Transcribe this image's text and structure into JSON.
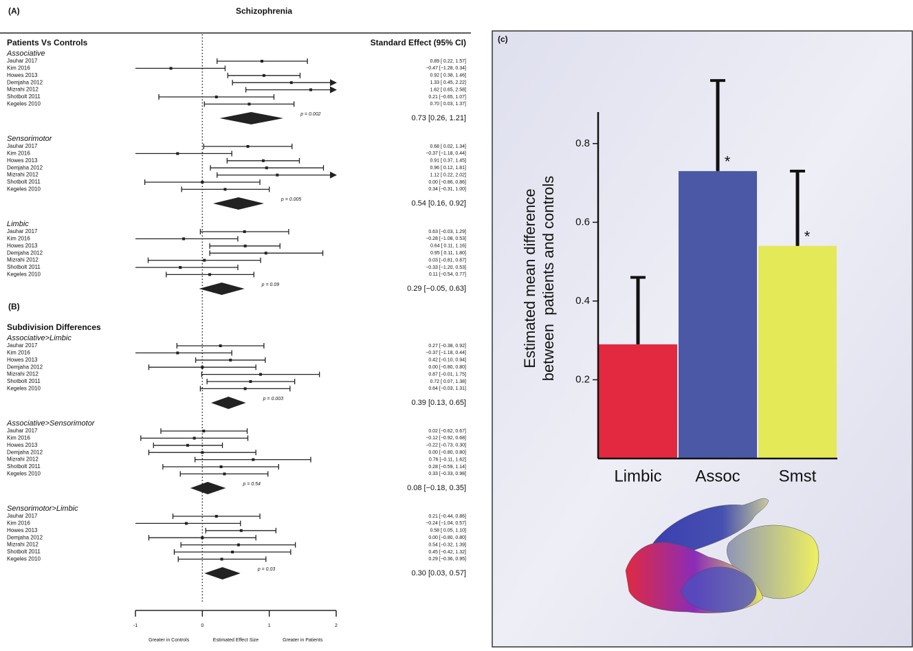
{
  "chart_data": [
    {
      "type": "forest",
      "title": "Schizophrenia",
      "column_header": "Standard Effect (95% CI)",
      "studies": [
        "Jauhar 2017",
        "Kim 2016",
        "Howes 2013",
        "Demjaha 2012",
        "Mizrahi 2012",
        "Shotbolt 2011",
        "Kegeles 2010"
      ],
      "xlim": [
        -1,
        2
      ],
      "xticks": [
        -1,
        0,
        1,
        2
      ],
      "xlabels": [
        "Greater in Controls",
        "Estimated Effect Size",
        "Greater in Patients"
      ],
      "sections": [
        {
          "panel": "(A)",
          "title": "Patients Vs Controls",
          "groups": [
            {
              "name": "Associative",
              "values": [
                0.89,
                -0.47,
                0.92,
                1.33,
                1.62,
                0.21,
                0.7
              ],
              "lower": [
                0.22,
                -1.28,
                0.38,
                0.45,
                0.65,
                -0.65,
                0.03
              ],
              "upper": [
                1.57,
                0.34,
                1.46,
                2.22,
                2.58,
                1.07,
                1.37
              ],
              "value_labels": [
                "0.89 [ 0.22, 1.57]",
                "−0.47 [−1.28, 0.34]",
                "0.92 [ 0.38, 1.46]",
                "1.33 [ 0.45, 2.22]",
                "1.62 [ 0.65, 2.58]",
                "0.21 [−0.65, 1.07]",
                "0.70 [ 0.03, 1.37]"
              ],
              "summary": {
                "value": 0.73,
                "lower": 0.26,
                "upper": 1.21,
                "label": "0.73 [0.26, 1.21]",
                "p": "p = 0.002"
              }
            },
            {
              "name": "Sensorimotor",
              "values": [
                0.68,
                -0.37,
                0.91,
                0.96,
                1.12,
                0.0,
                0.34
              ],
              "lower": [
                0.02,
                -1.18,
                0.37,
                0.12,
                0.22,
                -0.86,
                -0.31
              ],
              "upper": [
                1.34,
                0.44,
                1.45,
                1.81,
                2.02,
                0.86,
                1.0
              ],
              "value_labels": [
                "0.68 [ 0.02, 1.34]",
                "−0.37 [−1.18, 0.44]",
                "0.91 [ 0.37, 1.45]",
                "0.96 [ 0.12, 1.81]",
                "1.12 [ 0.22, 2.02]",
                "0.00 [−0.86, 0.86]",
                "0.34 [−0.31, 1.00]"
              ],
              "summary": {
                "value": 0.54,
                "lower": 0.16,
                "upper": 0.92,
                "label": "0.54 [0.16, 0.92]",
                "p": "p = 0.005"
              }
            },
            {
              "name": "Limbic",
              "values": [
                0.63,
                -0.28,
                0.64,
                0.95,
                0.03,
                -0.33,
                0.11
              ],
              "lower": [
                -0.03,
                -1.08,
                0.11,
                0.11,
                -0.81,
                -1.2,
                -0.54
              ],
              "upper": [
                1.29,
                0.53,
                1.16,
                1.8,
                0.87,
                0.53,
                0.77
              ],
              "value_labels": [
                "0.63 [−0.03, 1.29]",
                "−0.28 [−1.08, 0.53]",
                "0.64 [ 0.11, 1.16]",
                "0.95 [ 0.11, 1.80]",
                "0.03 [−0.81, 0.87]",
                "−0.33 [−1.20, 0.53]",
                "0.11 [−0.54, 0.77]"
              ],
              "summary": {
                "value": 0.29,
                "lower": -0.05,
                "upper": 0.63,
                "label": "0.29 [−0.05, 0.63]",
                "p": "p = 0.09"
              }
            }
          ]
        },
        {
          "panel": "(B)",
          "title": "Subdivision Differences",
          "groups": [
            {
              "name": "Associative>Limbic",
              "values": [
                0.27,
                -0.37,
                0.42,
                0.0,
                0.87,
                0.72,
                0.64
              ],
              "lower": [
                -0.38,
                -1.18,
                -0.1,
                -0.8,
                -0.01,
                0.07,
                -0.03
              ],
              "upper": [
                0.92,
                0.44,
                0.94,
                0.8,
                1.75,
                1.38,
                1.31
              ],
              "value_labels": [
                "0.27 [−0.38, 0.92]",
                "−0.37 [−1.18, 0.44]",
                "0.42 [−0.10, 0.94]",
                "0.00 [−0.80, 0.80]",
                "0.87 [−0.01, 1.75]",
                "0.72 [ 0.07, 1.38]",
                "0.64 [−0.03, 1.31]"
              ],
              "summary": {
                "value": 0.39,
                "lower": 0.13,
                "upper": 0.65,
                "label": "0.39 [0.13, 0.65]",
                "p": "p = 0.003"
              }
            },
            {
              "name": "Associative>Sensorimotor",
              "values": [
                0.02,
                -0.12,
                -0.22,
                0.0,
                0.76,
                0.28,
                0.33
              ],
              "lower": [
                -0.62,
                -0.92,
                -0.73,
                -0.8,
                -0.11,
                -0.59,
                -0.33
              ],
              "upper": [
                0.67,
                0.68,
                0.3,
                0.8,
                1.62,
                1.14,
                0.98
              ],
              "value_labels": [
                "0.02 [−0.62, 0.67]",
                "−0.12 [−0.92, 0.68]",
                "−0.22 [−0.73, 0.30]",
                "0.00 [−0.80, 0.80]",
                "0.76 [−0.11, 1.62]",
                "0.28 [−0.59, 1.14]",
                "0.33 [−0.33, 0.98]"
              ],
              "summary": {
                "value": 0.08,
                "lower": -0.18,
                "upper": 0.35,
                "label": "0.08 [−0.18, 0.35]",
                "p": "p = 0.54"
              }
            },
            {
              "name": "Sensorimotor>Limbic",
              "values": [
                0.21,
                -0.24,
                0.58,
                0.0,
                0.54,
                0.45,
                0.29
              ],
              "lower": [
                -0.44,
                -1.04,
                0.05,
                -0.8,
                -0.32,
                -0.42,
                -0.36
              ],
              "upper": [
                0.86,
                0.57,
                1.1,
                0.8,
                1.39,
                1.32,
                0.95
              ],
              "value_labels": [
                "0.21 [−0.44, 0.86]",
                "−0.24 [−1.04, 0.57]",
                "0.58 [ 0.05, 1.10]",
                "0.00 [−0.80, 0.80]",
                "0.54 [−0.32, 1.39]",
                "0.45 [−0.42, 1.32]",
                "0.29 [−0.36, 0.95]"
              ],
              "summary": {
                "value": 0.3,
                "lower": 0.03,
                "upper": 0.57,
                "label": "0.30 [0.03, 0.57]",
                "p": "p = 0.03"
              }
            }
          ]
        }
      ]
    },
    {
      "type": "bar",
      "panel": "(c)",
      "ylabel": [
        "Estimated mean difference",
        "between  patients and controls"
      ],
      "categories": [
        "Limbic",
        "Assoc",
        "Smst"
      ],
      "values": [
        0.29,
        0.73,
        0.54
      ],
      "errors": [
        0.17,
        0.23,
        0.19
      ],
      "markers": [
        null,
        "*",
        "*"
      ],
      "colors": [
        "#e2293f",
        "#4a58a6",
        "#e4e957"
      ],
      "ylim": [
        0,
        0.88
      ],
      "yticks": [
        0.2,
        0.4,
        0.6,
        0.8
      ]
    }
  ]
}
